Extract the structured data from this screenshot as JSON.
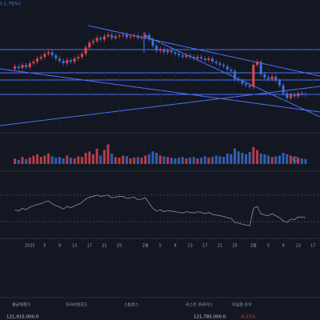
{
  "chart_data": {
    "type": "candlestick",
    "change": "(-1.76%)",
    "open": [
      125200000,
      125500000,
      125300000,
      125700000,
      125400000,
      125900000,
      126100000,
      126500000,
      126700000,
      127100000,
      127300000,
      126900000,
      126500000,
      126200000,
      125900000,
      126300000,
      126100000,
      126500000,
      126700000,
      127100000,
      127900000,
      128500000,
      128700000,
      129100000,
      128900000,
      129300000,
      129500000,
      129100000,
      129300000,
      129400000,
      129500000,
      129200000,
      129300000,
      129400000,
      129100000,
      129200000,
      129500000,
      128900000,
      128100000,
      127500000,
      127700000,
      127300000,
      127500000,
      127300000,
      127100000,
      126900000,
      126700000,
      126900000,
      126700000,
      126500000,
      126700000,
      126500000,
      126300000,
      126500000,
      126100000,
      125900000,
      125700000,
      125500000,
      125100000,
      124900000,
      123900000,
      123700000,
      123300000,
      123100000,
      122900000,
      125700000,
      126100000,
      124500000,
      124100000,
      123900000,
      124200000,
      123700000,
      123100000,
      122100000,
      121500000,
      121900000,
      121700000,
      122100000,
      122000000
    ],
    "high": [
      125800000,
      125800000,
      126000000,
      126000000,
      126200000,
      126400000,
      126800000,
      127000000,
      127400000,
      127600000,
      127600000,
      127200000,
      126800000,
      126500000,
      126600000,
      126600000,
      126800000,
      127000000,
      127400000,
      128200000,
      128800000,
      129000000,
      129400000,
      129400000,
      129600000,
      129800000,
      129800000,
      129600000,
      129700000,
      129800000,
      129800000,
      129600000,
      129700000,
      129700000,
      129500000,
      129800000,
      129800000,
      129200000,
      128400000,
      128000000,
      128000000,
      127800000,
      127800000,
      127600000,
      127400000,
      127200000,
      127200000,
      127200000,
      127000000,
      127000000,
      127000000,
      126800000,
      126800000,
      126800000,
      126400000,
      126200000,
      126000000,
      125800000,
      125400000,
      125200000,
      124200000,
      124000000,
      123600000,
      123400000,
      126000000,
      126400000,
      126400000,
      124800000,
      124400000,
      124500000,
      124500000,
      124000000,
      123400000,
      122400000,
      122200000,
      122200000,
      122400000,
      122400000,
      122300000
    ],
    "low": [
      124900000,
      125000000,
      125000000,
      125100000,
      125100000,
      125600000,
      125800000,
      126200000,
      126400000,
      126800000,
      126600000,
      126200000,
      125900000,
      125600000,
      125600000,
      125800000,
      125800000,
      126200000,
      126400000,
      126800000,
      127600000,
      128200000,
      128400000,
      128600000,
      128600000,
      129000000,
      128800000,
      128800000,
      129000000,
      129100000,
      128900000,
      128900000,
      129000000,
      128800000,
      128800000,
      128900000,
      128600000,
      127800000,
      127200000,
      127200000,
      127000000,
      127000000,
      127000000,
      126800000,
      126600000,
      126400000,
      126400000,
      126400000,
      126200000,
      126200000,
      126200000,
      126000000,
      126000000,
      125800000,
      125600000,
      125400000,
      125200000,
      124800000,
      124600000,
      123600000,
      123400000,
      123000000,
      122800000,
      122600000,
      122600000,
      125400000,
      124200000,
      123800000,
      123600000,
      123600000,
      123400000,
      122800000,
      121800000,
      121200000,
      121200000,
      121400000,
      121400000,
      121700000,
      121600000
    ],
    "close": [
      125500000,
      125300000,
      125700000,
      125400000,
      125900000,
      126100000,
      126500000,
      126700000,
      127100000,
      127300000,
      126900000,
      126500000,
      126200000,
      125900000,
      126300000,
      126100000,
      126500000,
      126700000,
      127100000,
      127900000,
      128500000,
      128700000,
      129100000,
      128900000,
      129300000,
      129500000,
      129100000,
      129300000,
      129400000,
      129500000,
      129200000,
      129300000,
      129400000,
      129100000,
      129200000,
      129500000,
      128900000,
      128100000,
      127500000,
      127700000,
      127300000,
      127500000,
      127300000,
      127100000,
      126900000,
      126700000,
      126900000,
      126700000,
      126500000,
      126700000,
      126500000,
      126300000,
      126500000,
      126100000,
      125900000,
      125700000,
      125500000,
      125100000,
      124900000,
      123900000,
      123700000,
      123300000,
      123100000,
      122900000,
      125700000,
      126100000,
      124500000,
      124100000,
      123900000,
      124200000,
      123700000,
      123100000,
      122100000,
      121500000,
      121900000,
      121700000,
      122100000,
      122000000,
      121900000
    ],
    "up_color": "#e0464f",
    "down_color": "#3d6fd6",
    "ylim": [
      117200000,
      133700000
    ],
    "xticks": [
      {
        "value": 4,
        "label": "2025"
      },
      {
        "value": 8,
        "label": "5"
      },
      {
        "value": 12,
        "label": "9"
      },
      {
        "value": 16,
        "label": "13"
      },
      {
        "value": 20,
        "label": "17"
      },
      {
        "value": 24,
        "label": "21"
      },
      {
        "value": 28,
        "label": "25"
      },
      {
        "value": 35,
        "label": "2월"
      },
      {
        "value": 39,
        "label": "5"
      },
      {
        "value": 43,
        "label": "9"
      },
      {
        "value": 47,
        "label": "13"
      },
      {
        "value": 51,
        "label": "17"
      },
      {
        "value": 55,
        "label": "21"
      },
      {
        "value": 59,
        "label": "25"
      },
      {
        "value": 64,
        "label": "3월"
      },
      {
        "value": 68,
        "label": "5"
      },
      {
        "value": 72,
        "label": "9"
      },
      {
        "value": 76,
        "label": "13"
      },
      {
        "value": 80,
        "label": "17"
      }
    ],
    "xlim": [
      -4,
      81
    ],
    "volume": [
      8,
      6,
      10,
      7,
      9,
      12,
      14,
      10,
      12,
      15,
      11,
      9,
      10,
      8,
      12,
      9,
      8,
      11,
      10,
      16,
      18,
      14,
      22,
      12,
      20,
      28,
      15,
      10,
      9,
      12,
      11,
      8,
      9,
      10,
      9,
      12,
      14,
      18,
      16,
      12,
      11,
      10,
      9,
      8,
      9,
      10,
      8,
      9,
      10,
      8,
      9,
      11,
      9,
      10,
      12,
      11,
      10,
      15,
      14,
      22,
      18,
      16,
      14,
      17,
      24,
      20,
      15,
      14,
      12,
      10,
      11,
      12,
      16,
      14,
      12,
      10,
      9,
      8,
      7
    ],
    "volume_lim": [
      0,
      40
    ],
    "rsi": [
      48,
      46,
      50,
      48,
      52,
      54,
      56,
      57,
      60,
      61,
      57,
      54,
      52,
      49,
      53,
      51,
      54,
      56,
      59,
      64,
      67,
      68,
      70,
      68,
      69,
      70,
      66,
      67,
      68,
      68,
      65,
      66,
      67,
      63,
      64,
      66,
      58,
      50,
      46,
      48,
      45,
      47,
      46,
      45,
      44,
      43,
      45,
      44,
      43,
      45,
      44,
      42,
      44,
      41,
      40,
      39,
      38,
      36,
      35,
      29,
      28,
      26,
      25,
      24,
      50,
      53,
      42,
      40,
      39,
      42,
      39,
      36,
      31,
      29,
      34,
      33,
      37,
      37,
      36
    ],
    "rsi_lim": [
      0,
      100
    ],
    "rsi_bands": [
      30,
      70
    ],
    "rsi_color": "#8c8fa6"
  },
  "footer": {
    "labels": [
      "평균체결가",
      "프라이빗모드",
      "스탑로스",
      "리스트 프라이스",
      "미실현 손익"
    ],
    "values": [
      "121,915,000.0",
      "121,785,000.0",
      "-0.11%"
    ]
  }
}
